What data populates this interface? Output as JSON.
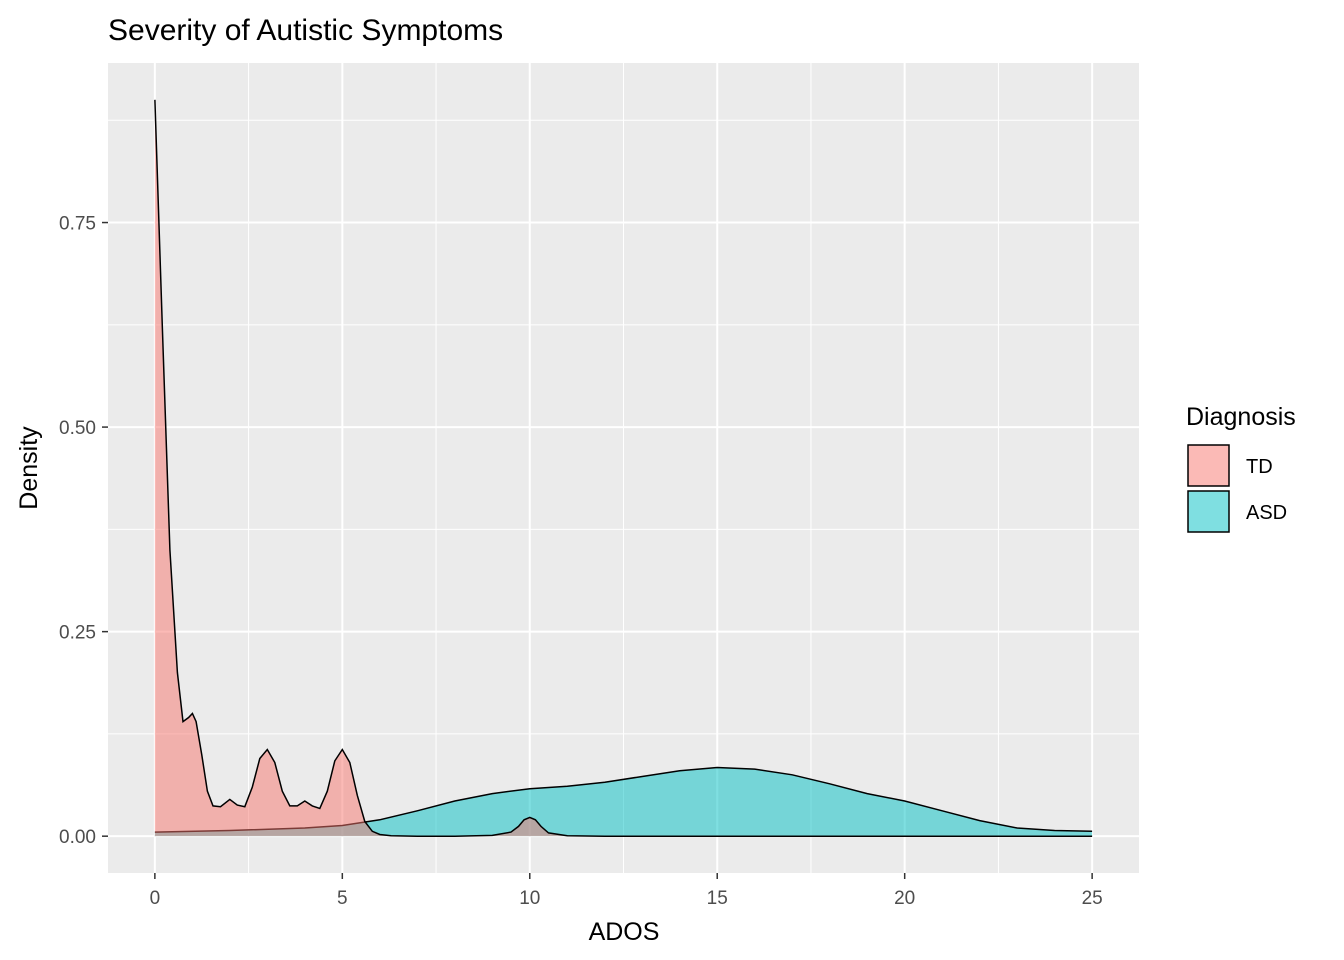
{
  "chart_data": {
    "type": "area",
    "title": "Severity of Autistic Symptoms",
    "xlabel": "ADOS",
    "ylabel": "Density",
    "xlim": [
      -1.25,
      26.25
    ],
    "ylim": [
      -0.045,
      0.945
    ],
    "x_ticks": [
      "0",
      "5",
      "10",
      "15",
      "20",
      "25"
    ],
    "y_ticks": [
      "0.00",
      "0.25",
      "0.50",
      "0.75"
    ],
    "grid": true,
    "legend": {
      "title": "Diagnosis",
      "placement": "right",
      "entries": [
        "TD",
        "ASD"
      ]
    },
    "series": [
      {
        "name": "TD",
        "color": "#F8766D",
        "x": [
          0,
          0.2,
          0.4,
          0.6,
          0.75,
          0.9,
          1.0,
          1.1,
          1.25,
          1.4,
          1.55,
          1.75,
          2.0,
          2.2,
          2.4,
          2.6,
          2.8,
          3.0,
          3.2,
          3.4,
          3.6,
          3.8,
          4.0,
          4.2,
          4.4,
          4.6,
          4.8,
          5.0,
          5.2,
          5.4,
          5.6,
          5.8,
          6.0,
          6.3,
          7,
          8,
          9,
          9.5,
          9.7,
          9.85,
          10.0,
          10.15,
          10.3,
          10.5,
          11,
          12,
          14,
          17,
          20,
          25
        ],
        "y": [
          0.9,
          0.62,
          0.35,
          0.2,
          0.14,
          0.145,
          0.15,
          0.14,
          0.1,
          0.055,
          0.037,
          0.036,
          0.045,
          0.038,
          0.036,
          0.06,
          0.095,
          0.106,
          0.09,
          0.055,
          0.037,
          0.037,
          0.043,
          0.037,
          0.034,
          0.055,
          0.092,
          0.106,
          0.09,
          0.05,
          0.018,
          0.006,
          0.002,
          0.0005,
          0,
          0,
          0.001,
          0.005,
          0.012,
          0.02,
          0.023,
          0.02,
          0.012,
          0.004,
          0.0005,
          0,
          0,
          0,
          0,
          0
        ]
      },
      {
        "name": "ASD",
        "color": "#00BFC4",
        "x": [
          0,
          2,
          4,
          5,
          6,
          7,
          8,
          9,
          10,
          11,
          12,
          13,
          14,
          15,
          16,
          17,
          18,
          19,
          20,
          21,
          22,
          23,
          24,
          25
        ],
        "y": [
          0.005,
          0.007,
          0.01,
          0.013,
          0.02,
          0.031,
          0.043,
          0.052,
          0.058,
          0.061,
          0.066,
          0.073,
          0.08,
          0.084,
          0.082,
          0.075,
          0.064,
          0.052,
          0.043,
          0.031,
          0.019,
          0.01,
          0.007,
          0.006
        ]
      }
    ]
  }
}
